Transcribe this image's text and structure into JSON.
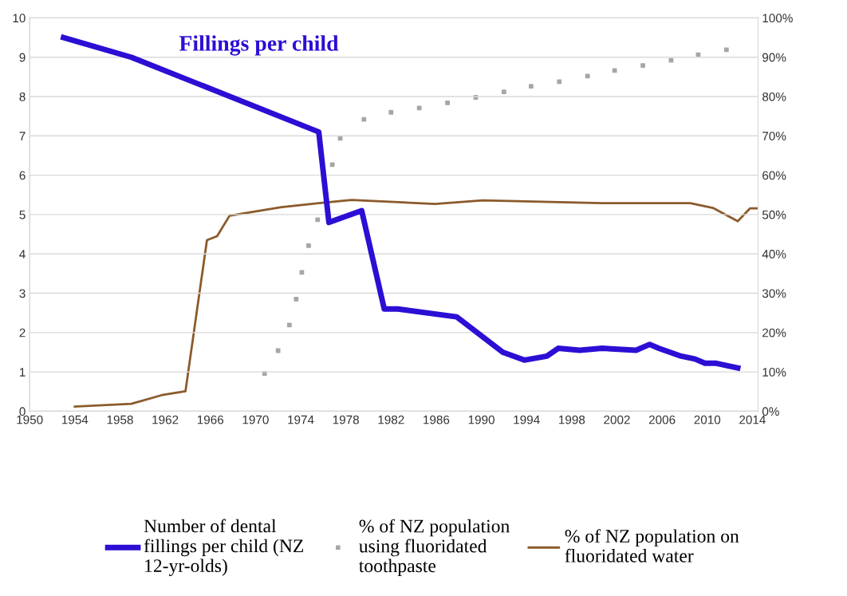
{
  "chart_data": {
    "type": "line",
    "annotations": [
      "Fillings per child"
    ],
    "xlim": [
      1950,
      2014.5
    ],
    "xticks": [
      1950,
      1954,
      1958,
      1962,
      1966,
      1970,
      1974,
      1978,
      1982,
      1986,
      1990,
      1994,
      1998,
      2002,
      2006,
      2010,
      2014
    ],
    "ylim": [
      0,
      10
    ],
    "yticks": [
      0,
      1,
      2,
      3,
      4,
      5,
      6,
      7,
      8,
      9,
      10
    ],
    "y2lim": [
      0,
      100
    ],
    "y2ticks": [
      {
        "value": 0,
        "label": "0%"
      },
      {
        "value": 10,
        "label": "10%"
      },
      {
        "value": 20,
        "label": "20%"
      },
      {
        "value": 30,
        "label": "30%"
      },
      {
        "value": 40,
        "label": "40%"
      },
      {
        "value": 50,
        "label": "50%"
      },
      {
        "value": 60,
        "label": "60%"
      },
      {
        "value": 70,
        "label": "70%"
      },
      {
        "value": 80,
        "label": "80%"
      },
      {
        "value": 90,
        "label": "90%"
      },
      {
        "value": 100,
        "label": "100%"
      }
    ],
    "grid": "y",
    "legend": "bottom",
    "series": [
      {
        "name": "Number of dental fillings per child (NZ 12-yr-olds)",
        "color": "#2b0fd4",
        "x": [
          1953,
          1959,
          1975.6,
          1976.5,
          1979.4,
          1981.4,
          1982.6,
          1987.8,
          1991.9,
          1993.8,
          1995.8,
          1996.8,
          1998.7,
          2000.7,
          2003.7,
          2004.9,
          2005.7,
          2006.7,
          2007.7,
          2008.9,
          2009.8,
          2010.8,
          2012.7
        ],
        "values": [
          9.5,
          9.0,
          7.1,
          4.8,
          5.1,
          2.6,
          2.6,
          2.4,
          1.5,
          1.3,
          1.4,
          1.6,
          1.55,
          1.6,
          1.55,
          1.7,
          1.6,
          1.5,
          1.4,
          1.33,
          1.22,
          1.22,
          1.1
        ]
      },
      {
        "name": "% of NZ population using fluoridated toothpaste",
        "type": "scatter",
        "axis": "y2",
        "color": "#a6a6a6",
        "marker": "square",
        "x": [
          1970.8,
          1972.0,
          1973.0,
          1973.6,
          1974.1,
          1974.7,
          1975.5,
          1976.2,
          1976.8,
          1977.5,
          1979.6,
          1982.0,
          1984.5,
          1987,
          1989.5,
          1992,
          1994.4,
          1996.9,
          1999.4,
          2001.8,
          2004.3,
          2006.8,
          2009.2,
          2011.7
        ],
        "values": [
          9.6,
          15.4,
          21.9,
          28.5,
          35.3,
          42.1,
          48.7,
          null,
          62.7,
          69.4,
          74.2,
          76.0,
          77.1,
          78.4,
          79.8,
          81.2,
          82.6,
          83.8,
          85.2,
          86.6,
          87.9,
          89.2,
          90.6,
          91.9
        ]
      },
      {
        "name": "% of NZ population on fluoridated water",
        "type": "line",
        "axis": "y2",
        "color": "#8b5a2b",
        "x": [
          1954,
          1959,
          1961.7,
          1963.8,
          1965.7,
          1966.6,
          1967.7,
          1972.3,
          1975.6,
          1978.5,
          1985.9,
          1990.1,
          2000.7,
          2008.5,
          2010.5,
          2012.7,
          2013.8,
          2014.5
        ],
        "values": [
          1.2,
          1.9,
          4.1,
          5.1,
          43.5,
          44.5,
          49.7,
          51.9,
          52.9,
          53.7,
          52.7,
          53.6,
          52.9,
          52.9,
          51.7,
          48.3,
          51.6,
          51.6
        ]
      }
    ]
  }
}
